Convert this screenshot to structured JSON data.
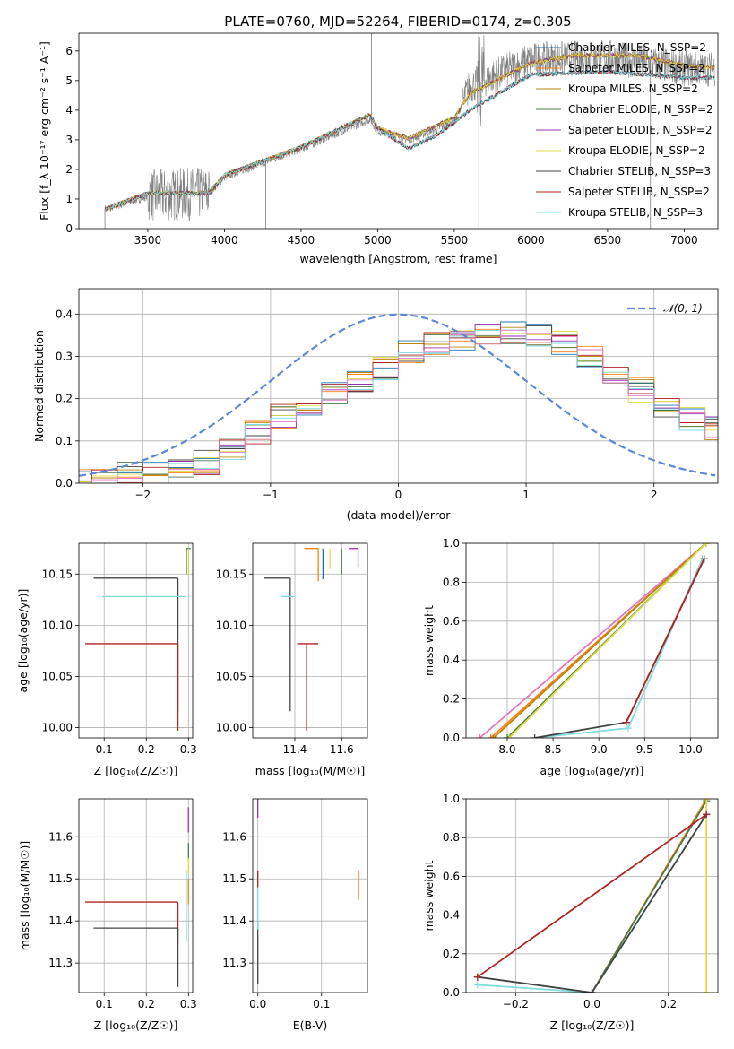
{
  "figure_title": "PLATE=0760, MJD=52264, FIBERID=0174, z=0.305",
  "chart_data": [
    {
      "id": "spectrum",
      "type": "line",
      "xlabel": "wavelength [Angstrom, rest frame]",
      "ylabel": "Flux [f_λ 10⁻¹⁷ erg cm⁻² s⁻¹ A⁻¹]",
      "xlim": [
        3050,
        7220
      ],
      "ylim": [
        0,
        6.6
      ],
      "xticks": [
        3500,
        4000,
        4500,
        5000,
        5500,
        6000,
        6500,
        7000
      ],
      "yticks": [
        0,
        1,
        2,
        3,
        4,
        5,
        6
      ],
      "grid": false,
      "legend_position": "top-right",
      "data_series": {
        "name": "",
        "color": "#808080",
        "continuum": [
          [
            3220,
            0.65
          ],
          [
            3500,
            1.1
          ],
          [
            3900,
            1.2
          ],
          [
            4000,
            1.75
          ],
          [
            4500,
            2.7
          ],
          [
            4950,
            3.7
          ],
          [
            5000,
            3.3
          ],
          [
            5200,
            3.0
          ],
          [
            5500,
            3.6
          ],
          [
            5600,
            4.8
          ],
          [
            6000,
            5.7
          ],
          [
            6500,
            5.8
          ],
          [
            7000,
            5.4
          ],
          [
            7200,
            5.4
          ]
        ],
        "spikes": [
          [
            4270,
            0
          ],
          [
            4960,
            6.6
          ],
          [
            5660,
            0
          ],
          [
            6780,
            0
          ]
        ]
      },
      "series": [
        {
          "name": "Chabrier MILES, N_SSP=2",
          "color": "#1f77b4"
        },
        {
          "name": "Salpeter MILES, N_SSP=2",
          "color": "#ff7f0e"
        },
        {
          "name": "Kroupa MILES, N_SSP=2",
          "color": "#b8860b"
        },
        {
          "name": "Chabrier ELODIE, N_SSP=2",
          "color": "#4a7a4a"
        },
        {
          "name": "Salpeter ELODIE, N_SSP=2",
          "color": "#9b30b0"
        },
        {
          "name": "Kroupa ELODIE, N_SSP=2",
          "color": "#dddd40"
        },
        {
          "name": "Chabrier STELIB, N_SSP=3",
          "color": "#444444"
        },
        {
          "name": "Salpeter STELIB, N_SSP=2",
          "color": "#b22222"
        },
        {
          "name": "Kroupa STELIB, N_SSP=3",
          "color": "#7fdddd"
        }
      ],
      "model_high": [
        [
          3220,
          0.65
        ],
        [
          3500,
          1.2
        ],
        [
          3900,
          1.2
        ],
        [
          4000,
          1.8
        ],
        [
          4500,
          2.75
        ],
        [
          4950,
          3.85
        ],
        [
          5000,
          3.4
        ],
        [
          5200,
          3.05
        ],
        [
          5500,
          3.75
        ],
        [
          5600,
          4.55
        ],
        [
          6000,
          5.6
        ],
        [
          6300,
          5.85
        ],
        [
          6700,
          5.85
        ],
        [
          7000,
          5.5
        ],
        [
          7200,
          5.45
        ]
      ],
      "model_low": [
        [
          3220,
          0.65
        ],
        [
          3500,
          1.2
        ],
        [
          3900,
          1.2
        ],
        [
          4000,
          1.8
        ],
        [
          4500,
          2.75
        ],
        [
          4950,
          3.85
        ],
        [
          5000,
          3.4
        ],
        [
          5200,
          2.7
        ],
        [
          5400,
          3.2
        ],
        [
          5600,
          4.0
        ],
        [
          6000,
          5.2
        ],
        [
          6500,
          5.3
        ],
        [
          7000,
          5.1
        ],
        [
          7200,
          5.1
        ]
      ]
    },
    {
      "id": "residuals",
      "type": "line",
      "xlabel": "(data-model)/error",
      "ylabel": "Normed distribution",
      "xlim": [
        -2.5,
        2.5
      ],
      "ylim": [
        0,
        0.46
      ],
      "xticks": [
        -2,
        -1,
        0,
        1,
        2
      ],
      "yticks": [
        0.0,
        0.1,
        0.2,
        0.3,
        0.4
      ],
      "grid": true,
      "legend_position": "top-right",
      "legend": "𝒩(0, 1)",
      "normal_curve": {
        "mean": 0,
        "sigma": 1,
        "color": "#5b87d6"
      },
      "histogram_centers": [
        -2.5,
        -2.3,
        -2.1,
        -1.9,
        -1.7,
        -1.5,
        -1.3,
        -1.1,
        -0.9,
        -0.7,
        -0.5,
        -0.3,
        -0.1,
        0.1,
        0.3,
        0.5,
        0.7,
        0.9,
        1.1,
        1.3,
        1.5,
        1.7,
        1.9,
        2.1,
        2.3,
        2.5
      ],
      "histogram_mean": [
        0.01,
        0.01,
        0.02,
        0.02,
        0.03,
        0.05,
        0.08,
        0.12,
        0.16,
        0.19,
        0.21,
        0.24,
        0.27,
        0.31,
        0.33,
        0.34,
        0.35,
        0.36,
        0.35,
        0.33,
        0.3,
        0.26,
        0.22,
        0.18,
        0.15,
        0.13
      ]
    },
    {
      "id": "age-vs-z",
      "type": "scatter",
      "xlabel": "Z [log₁₀(Z/Z☉)]",
      "ylabel": "age  [log₁₀(age/yr)]",
      "xlim": [
        0.04,
        0.31
      ],
      "ylim": [
        9.99,
        10.18
      ],
      "xticks": [
        0.1,
        0.2,
        0.3
      ],
      "yticks": [
        10.0,
        10.05,
        10.1,
        10.15
      ],
      "grid": true,
      "points": [
        {
          "x": 0.275,
          "y": 10.146,
          "xerr": [
            0.2,
            0.0
          ],
          "yerr": [
            0.13,
            0.0
          ],
          "color": "#444444"
        },
        {
          "x": 0.275,
          "y": 10.128,
          "xerr": [
            0.18,
            0.02
          ],
          "yerr": [
            0.0,
            0.0
          ],
          "color": "#7fdddd"
        },
        {
          "x": 0.275,
          "y": 10.082,
          "xerr": [
            0.22,
            0.0
          ],
          "yerr": [
            0.085,
            0.0
          ],
          "color": "#b22222"
        },
        {
          "x": 0.295,
          "y": 10.175,
          "xerr": [
            0.0,
            0.01
          ],
          "yerr": [
            0.025,
            0.0
          ],
          "color": "#4a7a4a"
        },
        {
          "x": 0.3,
          "y": 10.175,
          "xerr": [
            0.0,
            0.0
          ],
          "yerr": [
            0.025,
            0.0
          ],
          "color": "#dddd40"
        },
        {
          "x": 0.3,
          "y": 10.16,
          "xerr": [
            0.0,
            0.0
          ],
          "yerr": [
            0.0,
            0.0
          ],
          "color": "#ff7f0e"
        }
      ]
    },
    {
      "id": "age-vs-mass",
      "type": "scatter",
      "xlabel": "mass [log₁₀(M/M☉)]",
      "ylabel": "",
      "xlim": [
        11.22,
        11.71
      ],
      "ylim": [
        9.99,
        10.18
      ],
      "xticks": [
        11.4,
        11.6
      ],
      "yticks": [
        10.0,
        10.05,
        10.1,
        10.15
      ],
      "grid": true,
      "points": [
        {
          "x": 11.38,
          "y": 10.146,
          "xerr": [
            0.11,
            0.0
          ],
          "yerr": [
            0.13,
            0.0
          ],
          "color": "#444444"
        },
        {
          "x": 11.37,
          "y": 10.128,
          "xerr": [
            0.03,
            0.03
          ],
          "yerr": [
            0.0,
            0.0
          ],
          "color": "#7fdddd"
        },
        {
          "x": 11.45,
          "y": 10.082,
          "xerr": [
            0.04,
            0.05
          ],
          "yerr": [
            0.085,
            0.0
          ],
          "color": "#b22222"
        },
        {
          "x": 11.6,
          "y": 10.175,
          "xerr": [
            0.0,
            0.0
          ],
          "yerr": [
            0.025,
            0.0
          ],
          "color": "#4a7a4a"
        },
        {
          "x": 11.67,
          "y": 10.175,
          "xerr": [
            0.04,
            0.0
          ],
          "yerr": [
            0.018,
            0.0
          ],
          "color": "#9b30b0"
        },
        {
          "x": 11.5,
          "y": 10.175,
          "xerr": [
            0.06,
            0.0
          ],
          "yerr": [
            0.032,
            0.0
          ],
          "color": "#ff7f0e"
        },
        {
          "x": 11.55,
          "y": 10.175,
          "xerr": [
            0.0,
            0.0
          ],
          "yerr": [
            0.02,
            0.0
          ],
          "color": "#dddd40"
        },
        {
          "x": 11.52,
          "y": 10.175,
          "xerr": [
            0.0,
            0.0
          ],
          "yerr": [
            0.03,
            0.0
          ],
          "color": "#1f77b4"
        }
      ]
    },
    {
      "id": "weight-vs-age",
      "type": "line",
      "xlabel": "age  [log₁₀(age/yr)]",
      "ylabel": "mass weight",
      "xlim": [
        7.55,
        10.3
      ],
      "ylim": [
        0,
        1.0
      ],
      "xticks": [
        8.0,
        8.5,
        9.0,
        9.5,
        10.0
      ],
      "yticks": [
        0.0,
        0.2,
        0.4,
        0.6,
        0.8,
        1.0
      ],
      "grid": true,
      "series": [
        {
          "color": "#e377c2",
          "x": [
            7.7,
            10.17
          ],
          "y": [
            0.0,
            1.0
          ]
        },
        {
          "color": "#ff7f0e",
          "x": [
            7.82,
            10.17
          ],
          "y": [
            0.0,
            1.0
          ]
        },
        {
          "color": "#b8860b",
          "x": [
            7.85,
            10.17
          ],
          "y": [
            0.0,
            1.0
          ]
        },
        {
          "color": "#4a7a4a",
          "x": [
            8.0,
            10.17
          ],
          "y": [
            0.0,
            1.0
          ]
        },
        {
          "color": "#dddd40",
          "x": [
            8.02,
            10.17
          ],
          "y": [
            0.0,
            1.0
          ]
        },
        {
          "color": "#7fdddd",
          "x": [
            8.3,
            9.32,
            10.13
          ],
          "y": [
            0.0,
            0.05,
            0.92
          ]
        },
        {
          "color": "#444444",
          "x": [
            8.3,
            9.3,
            10.15
          ],
          "y": [
            0.0,
            0.08,
            0.92
          ]
        },
        {
          "color": "#b22222",
          "x": [
            9.3,
            10.15
          ],
          "y": [
            0.08,
            0.92
          ]
        }
      ]
    },
    {
      "id": "mass-vs-z",
      "type": "scatter",
      "xlabel": "Z [log₁₀(Z/Z☉)]",
      "ylabel": "mass [log₁₀(M/M☉)]",
      "xlim": [
        0.04,
        0.31
      ],
      "ylim": [
        11.23,
        11.69
      ],
      "xticks": [
        0.1,
        0.2,
        0.3
      ],
      "yticks": [
        11.3,
        11.4,
        11.5,
        11.6
      ],
      "grid": true,
      "points": [
        {
          "x": 0.275,
          "y": 11.445,
          "xerr": [
            0.22,
            0.0
          ],
          "yerr": [
            0.1,
            0.0
          ],
          "color": "#b22222"
        },
        {
          "x": 0.275,
          "y": 11.383,
          "xerr": [
            0.2,
            0.0
          ],
          "yerr": [
            0.14,
            0.0
          ],
          "color": "#444444"
        },
        {
          "x": 0.295,
          "y": 11.52,
          "xerr": [
            0.0,
            0.0
          ],
          "yerr": [
            0.17,
            0.0
          ],
          "color": "#7fdddd"
        },
        {
          "x": 0.3,
          "y": 11.67,
          "xerr": [
            0.0,
            0.0
          ],
          "yerr": [
            0.06,
            0.0
          ],
          "color": "#9b30b0"
        },
        {
          "x": 0.3,
          "y": 11.585,
          "xerr": [
            0.0,
            0.0
          ],
          "yerr": [
            0.04,
            0.0
          ],
          "color": "#4a7a4a"
        },
        {
          "x": 0.3,
          "y": 11.5,
          "xerr": [
            0.0,
            0.0
          ],
          "yerr": [
            0.06,
            0.0
          ],
          "color": "#ff7f0e"
        },
        {
          "x": 0.3,
          "y": 11.55,
          "xerr": [
            0.0,
            0.0
          ],
          "yerr": [
            0.04,
            0.0
          ],
          "color": "#dddd40"
        }
      ]
    },
    {
      "id": "mass-vs-ebv",
      "type": "scatter",
      "xlabel": "E(B-V)",
      "ylabel": "",
      "xlim": [
        -0.008,
        0.172
      ],
      "ylim": [
        11.23,
        11.69
      ],
      "xticks": [
        0.0,
        0.1
      ],
      "yticks": [
        11.3,
        11.4,
        11.5,
        11.6
      ],
      "grid": true,
      "points": [
        {
          "x": 0.0,
          "y": 11.25,
          "yerr": [
            0.0,
            0.15
          ],
          "color": "#444444"
        },
        {
          "x": 0.0,
          "y": 11.38,
          "yerr": [
            0.0,
            0.14
          ],
          "color": "#7fdddd"
        },
        {
          "x": 0.0,
          "y": 11.5,
          "yerr": [
            0.02,
            0.02
          ],
          "color": "#b22222"
        },
        {
          "x": 0.0,
          "y": 11.56,
          "yerr": [
            0.0,
            0.0
          ],
          "color": "#dddd40"
        },
        {
          "x": 0.0,
          "y": 11.645,
          "yerr": [
            0.0,
            0.05
          ],
          "color": "#9b30b0"
        },
        {
          "x": 0.0,
          "y": 11.59,
          "yerr": [
            0.0,
            0.0
          ],
          "color": "#4a7a4a"
        },
        {
          "x": 0.158,
          "y": 11.485,
          "yerr": [
            0.035,
            0.035
          ],
          "color": "#ff7f0e"
        },
        {
          "x": 0.157,
          "y": 11.52,
          "yerr": [
            0.0,
            0.0
          ],
          "color": "#1f77b4"
        },
        {
          "x": 0.163,
          "y": 11.56,
          "yerr": [
            0.0,
            0.0
          ],
          "color": "#e377c2"
        }
      ]
    },
    {
      "id": "weight-vs-z",
      "type": "line",
      "xlabel": "Z [log₁₀(Z/Z☉)]",
      "ylabel": "mass weight",
      "xlim": [
        -0.33,
        0.33
      ],
      "ylim": [
        0,
        1.0
      ],
      "xticks": [
        -0.2,
        0.0,
        0.2
      ],
      "yticks": [
        0.0,
        0.2,
        0.4,
        0.6,
        0.8,
        1.0
      ],
      "grid": true,
      "series": [
        {
          "color": "#ff7f0e",
          "x": [
            0.0,
            0.3
          ],
          "y": [
            0.0,
            1.0
          ]
        },
        {
          "color": "#4a7a4a",
          "x": [
            0.0,
            0.3
          ],
          "y": [
            0.0,
            0.99
          ]
        },
        {
          "color": "#dddd40",
          "x": [
            0.3,
            0.3
          ],
          "y": [
            0.0,
            1.0
          ]
        },
        {
          "color": "#7fdddd",
          "x": [
            -0.3,
            0.0,
            0.3
          ],
          "y": [
            0.04,
            0.0,
            0.92
          ]
        },
        {
          "color": "#444444",
          "x": [
            -0.3,
            0.0,
            0.3
          ],
          "y": [
            0.08,
            0.0,
            0.92
          ]
        },
        {
          "color": "#b22222",
          "x": [
            -0.3,
            0.3
          ],
          "y": [
            0.08,
            0.92
          ]
        }
      ]
    }
  ]
}
